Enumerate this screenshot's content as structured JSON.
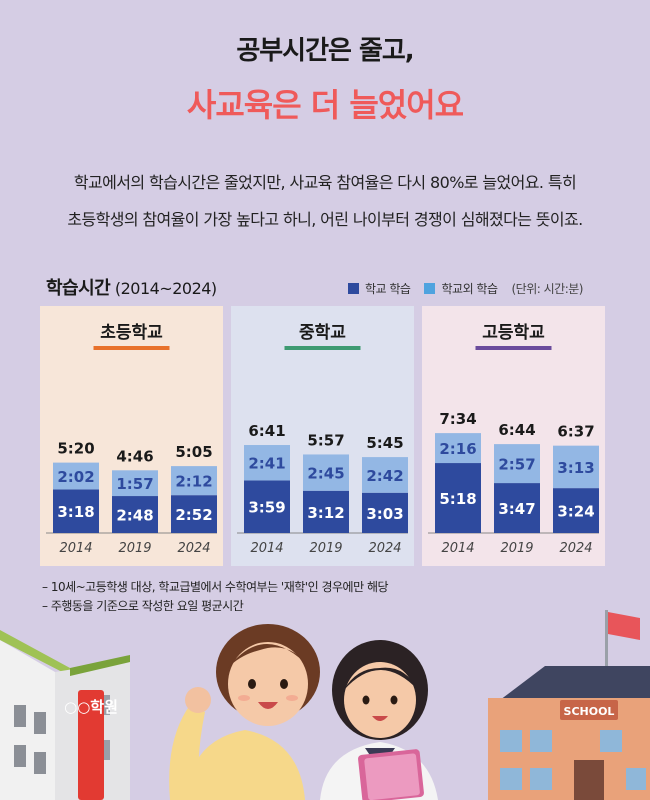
{
  "header": {
    "line1": "공부시간은 줄고,",
    "line2": "사교육은 더 늘었어요"
  },
  "description": {
    "line1": "학교에서의 학습시간은 줄었지만,  사교육 참여율은 다시 80%로 늘었어요. 특히",
    "line2": "초등학생의 참여율이 가장 높다고 하니,  어린 나이부터 경쟁이 심해졌다는 뜻이죠."
  },
  "chart_title": {
    "main": "학습시간",
    "sub": " (2014~2024)"
  },
  "legend": {
    "school": "학교 학습",
    "outside": "학교외 학습",
    "unit": "(단위: 시간:분)"
  },
  "colors": {
    "school": "#2e4a9e",
    "outside": "#93b7e4",
    "legend_outside": "#4fa3df",
    "headline_accent": "#ef5a5a"
  },
  "notes": {
    "line1": "– 10세~고등학생 대상, 학교급별에서 수학여부는 '재학'인 경우에만 해당",
    "line2": "– 주행동을 기준으로 작성한 요일 평균시간"
  },
  "chart_data": {
    "type": "bar",
    "stacked": true,
    "unit": "hours:minutes",
    "ylim": [
      0,
      8
    ],
    "panels": [
      {
        "title": "초등학교",
        "accent": "#e8712b",
        "background": "#f7e6d9",
        "categories": [
          "2014",
          "2019",
          "2024"
        ],
        "series": [
          {
            "name": "학교 학습",
            "values": [
              3.3,
              2.8,
              2.867
            ],
            "labels": [
              "3:18",
              "2:48",
              "2:52"
            ]
          },
          {
            "name": "학교외 학습",
            "values": [
              2.033,
              1.95,
              2.2
            ],
            "labels": [
              "2:02",
              "1:57",
              "2:12"
            ]
          }
        ],
        "totals": [
          "5:20",
          "4:46",
          "5:05"
        ]
      },
      {
        "title": "중학교",
        "accent": "#3e9a72",
        "background": "#dde1ef",
        "categories": [
          "2014",
          "2019",
          "2024"
        ],
        "series": [
          {
            "name": "학교 학습",
            "values": [
              3.983,
              3.2,
              3.05
            ],
            "labels": [
              "3:59",
              "3:12",
              "3:03"
            ]
          },
          {
            "name": "학교외 학습",
            "values": [
              2.683,
              2.75,
              2.7
            ],
            "labels": [
              "2:41",
              "2:45",
              "2:42"
            ]
          }
        ],
        "totals": [
          "6:41",
          "5:57",
          "5:45"
        ]
      },
      {
        "title": "고등학교",
        "accent": "#6a4b9c",
        "background": "#f3e4ea",
        "categories": [
          "2014",
          "2019",
          "2024"
        ],
        "series": [
          {
            "name": "학교 학습",
            "values": [
              5.3,
              3.783,
              3.4
            ],
            "labels": [
              "5:18",
              "3:47",
              "3:24"
            ]
          },
          {
            "name": "학교외 학습",
            "values": [
              2.267,
              2.95,
              3.217
            ],
            "labels": [
              "2:16",
              "2:57",
              "3:13"
            ]
          }
        ],
        "totals": [
          "7:34",
          "6:44",
          "6:37"
        ]
      }
    ]
  },
  "illustration": {
    "academy_sign": "○○학원",
    "school_sign": "SCHOOL"
  }
}
